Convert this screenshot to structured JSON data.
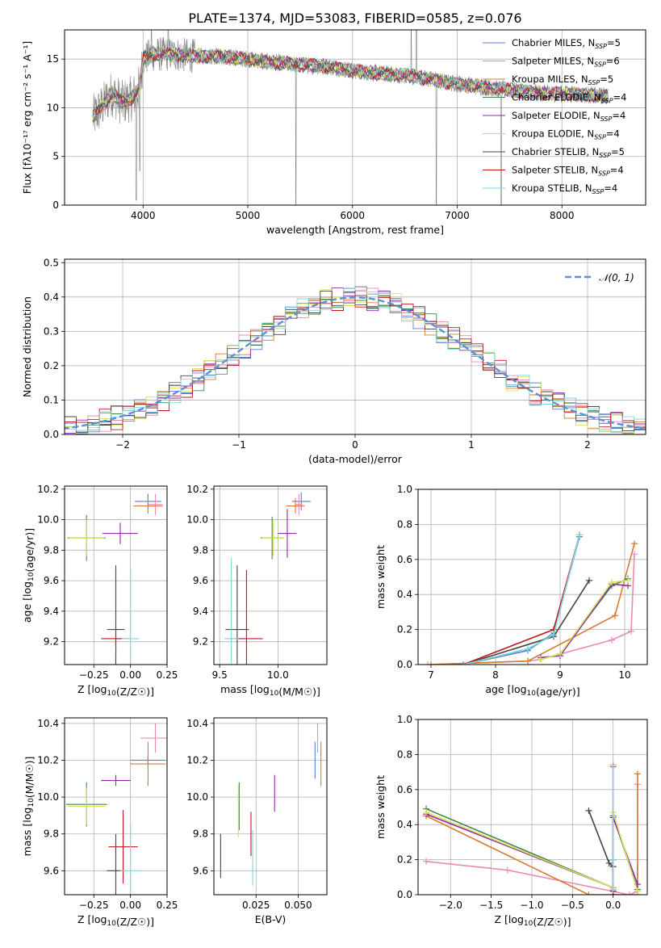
{
  "figure": {
    "title": "PLATE=1374, MJD=53083, FIBERID=0585, z=0.076"
  },
  "series_styles": [
    {
      "name": "Chabrier MILES, N<sub>SSP</sub>=5",
      "name_text": "Chabrier MILES, NSSP=5",
      "color": "#5b7fd0"
    },
    {
      "name": "Salpeter MILES, NSSP=6",
      "color": "#e88ab8"
    },
    {
      "name": "Kroupa MILES, NSSP=5",
      "color": "#d97a2e"
    },
    {
      "name": "Chabrier ELODIE, NSSP=4",
      "color": "#3f8a4a"
    },
    {
      "name": "Salpeter ELODIE, NSSP=4",
      "color": "#8e2aa8"
    },
    {
      "name": "Kroupa ELODIE, NSSP=4",
      "color": "#d9e05a"
    },
    {
      "name": "Chabrier STELIB, NSSP=5",
      "color": "#444444"
    },
    {
      "name": "Salpeter STELIB, NSSP=4",
      "color": "#c01818"
    },
    {
      "name": "Kroupa STELIB, NSSP=4",
      "color": "#7fd6dc"
    }
  ],
  "chart_data": [
    {
      "id": "spectrum",
      "type": "line",
      "xlabel": "wavelength [Angstrom, rest frame]",
      "ylabel": "Flux [fλ10⁻¹⁷ erg cm⁻² s⁻¹ A⁻¹]",
      "xlim": [
        3250,
        8800
      ],
      "ylim": [
        0,
        18
      ],
      "xticks": [
        4000,
        5000,
        6000,
        7000,
        8000
      ],
      "yticks": [
        0,
        5,
        10,
        15
      ],
      "data_color": "#808080",
      "data_x_range": [
        3520,
        8440
      ],
      "data_profile": [
        [
          3520,
          9
        ],
        [
          3600,
          10
        ],
        [
          3700,
          11.5
        ],
        [
          3800,
          10.5
        ],
        [
          3900,
          11
        ],
        [
          3960,
          12
        ],
        [
          4000,
          15
        ],
        [
          4100,
          15.5
        ],
        [
          4300,
          15.5
        ],
        [
          4500,
          15.3
        ],
        [
          4700,
          15.3
        ],
        [
          5000,
          15
        ],
        [
          5200,
          14.7
        ],
        [
          5500,
          14.4
        ],
        [
          5800,
          14.2
        ],
        [
          6000,
          13.8
        ],
        [
          6300,
          13.5
        ],
        [
          6600,
          13.2
        ],
        [
          6900,
          12.6
        ],
        [
          7200,
          12.2
        ],
        [
          7500,
          11.8
        ],
        [
          7800,
          11.5
        ],
        [
          8100,
          11.4
        ],
        [
          8440,
          11.2
        ]
      ],
      "dips": [
        [
          3934,
          0.5
        ],
        [
          3968,
          3.5
        ],
        [
          5460,
          0
        ],
        [
          6800,
          0
        ],
        [
          7420,
          0
        ]
      ],
      "spikes": [
        [
          4080,
          18
        ],
        [
          4240,
          18
        ],
        [
          6560,
          18
        ],
        [
          6610,
          18
        ]
      ],
      "legend_entries": [
        {
          "label": "Chabrier MILES, N",
          "sub": "SSP",
          "suffix": "=5"
        },
        {
          "label": "Salpeter MILES, N",
          "sub": "SSP",
          "suffix": "=6"
        },
        {
          "label": "Kroupa MILES, N",
          "sub": "SSP",
          "suffix": "=5"
        },
        {
          "label": "Chabrier ELODIE, N",
          "sub": "SSP",
          "suffix": "=4"
        },
        {
          "label": "Salpeter ELODIE, N",
          "sub": "SSP",
          "suffix": "=4"
        },
        {
          "label": "Kroupa ELODIE, N",
          "sub": "SSP",
          "suffix": "=4"
        },
        {
          "label": "Chabrier STELIB, N",
          "sub": "SSP",
          "suffix": "=5"
        },
        {
          "label": "Salpeter STELIB, N",
          "sub": "SSP",
          "suffix": "=4"
        },
        {
          "label": "Kroupa STELIB, N",
          "sub": "SSP",
          "suffix": "=4"
        }
      ],
      "legend_placement": "upper right"
    },
    {
      "id": "residuals",
      "type": "histogram",
      "xlabel": "(data-model)/error",
      "ylabel": "Normed distribution",
      "xlim": [
        -2.5,
        2.5
      ],
      "ylim": [
        0,
        0.51
      ],
      "xticks": [
        -2,
        -1,
        0,
        1,
        2
      ],
      "yticks": [
        0.0,
        0.1,
        0.2,
        0.3,
        0.4,
        0.5
      ],
      "bin_width": 0.1,
      "reference_label": "𝒩(0, 1)",
      "reference_color": "#5b8fd6",
      "legend_placement": "upper right",
      "grid": true
    },
    {
      "id": "age_vs_Z",
      "type": "errorbar",
      "xlabel": "Z [log10(Z/Z☉)]",
      "ylabel": "age  [log10(age/yr)]",
      "xlim": [
        -0.45,
        0.25
      ],
      "ylim": [
        9.05,
        10.22
      ],
      "xticks": [
        -0.25,
        0.0,
        0.25
      ],
      "yticks": [
        9.2,
        9.4,
        9.6,
        9.8,
        10.0,
        10.2
      ],
      "points": [
        {
          "x": 0.12,
          "y": 10.12,
          "xerr": 0.09,
          "yerr": 0.05
        },
        {
          "x": 0.17,
          "y": 10.1,
          "xerr": 0.05,
          "yerr": 0.07
        },
        {
          "x": 0.12,
          "y": 10.09,
          "xerr": 0.1,
          "yerr": 0.05
        },
        {
          "x": -0.3,
          "y": 9.88,
          "xerr": 0.13,
          "yerr": 0.15
        },
        {
          "x": -0.07,
          "y": 9.91,
          "xerr": 0.12,
          "yerr": 0.07
        },
        {
          "x": -0.3,
          "y": 9.88,
          "xerr": 0.12,
          "yerr": 0.12
        },
        {
          "x": -0.1,
          "y": 9.28,
          "xerr": 0.06,
          "yerr": 0.42
        },
        {
          "x": -0.1,
          "y": 9.22,
          "xerr": 0.1,
          "yerr": 0.1
        },
        {
          "x": 0.0,
          "y": 9.22,
          "xerr": 0.06,
          "yerr": 0.45
        }
      ]
    },
    {
      "id": "age_vs_mass",
      "type": "errorbar",
      "xlabel": "mass [log10(M/M☉)]",
      "ylabel": "",
      "xlim": [
        9.45,
        10.42
      ],
      "ylim": [
        9.05,
        10.22
      ],
      "xticks": [
        9.5,
        10.0
      ],
      "yticks": [
        9.2,
        9.4,
        9.6,
        9.8,
        10.0,
        10.2
      ],
      "points": [
        {
          "x": 10.2,
          "y": 10.12,
          "xerr": 0.08,
          "yerr": 0.06
        },
        {
          "x": 10.18,
          "y": 10.1,
          "xerr": 0.03,
          "yerr": 0.07
        },
        {
          "x": 10.15,
          "y": 10.09,
          "xerr": 0.08,
          "yerr": 0.05
        },
        {
          "x": 9.95,
          "y": 9.88,
          "xerr": 0.1,
          "yerr": 0.14
        },
        {
          "x": 10.08,
          "y": 9.91,
          "xerr": 0.08,
          "yerr": 0.16
        },
        {
          "x": 9.96,
          "y": 9.88,
          "xerr": 0.1,
          "yerr": 0.12
        },
        {
          "x": 9.65,
          "y": 9.28,
          "xerr": 0.1,
          "yerr": 0.42
        },
        {
          "x": 9.73,
          "y": 9.22,
          "xerr": 0.14,
          "yerr": 0.45
        },
        {
          "x": 9.6,
          "y": 9.22,
          "xerr": 0.06,
          "yerr": 0.53
        }
      ]
    },
    {
      "id": "massweight_vs_age",
      "type": "line",
      "xlabel": "age  [log10(age/yr)]",
      "ylabel": "mass weight",
      "xlim": [
        6.8,
        10.35
      ],
      "ylim": [
        0,
        1.0
      ],
      "xticks": [
        7,
        8,
        9,
        10
      ],
      "yticks": [
        0.0,
        0.2,
        0.4,
        0.6,
        0.8,
        1.0
      ],
      "series": [
        {
          "x": [
            7.5,
            8.5,
            8.9,
            9.3
          ],
          "y": [
            0.0,
            0.08,
            0.18,
            0.73
          ]
        },
        {
          "x": [
            6.95,
            8.5,
            8.7,
            9.8,
            10.1,
            10.15
          ],
          "y": [
            0.0,
            0.02,
            0.03,
            0.14,
            0.19,
            0.63
          ]
        },
        {
          "x": [
            7.0,
            8.5,
            9.85,
            10.15
          ],
          "y": [
            0.0,
            0.02,
            0.28,
            0.69
          ]
        },
        {
          "x": [
            8.7,
            9.0,
            9.8,
            10.05
          ],
          "y": [
            0.03,
            0.06,
            0.45,
            0.49
          ]
        },
        {
          "x": [
            8.7,
            9.0,
            9.8,
            10.05
          ],
          "y": [
            0.04,
            0.05,
            0.46,
            0.45
          ]
        },
        {
          "x": [
            8.7,
            9.0,
            9.8,
            10.05
          ],
          "y": [
            0.03,
            0.06,
            0.47,
            0.48
          ]
        },
        {
          "x": [
            7.5,
            8.9,
            9.45
          ],
          "y": [
            0.0,
            0.16,
            0.48
          ]
        },
        {
          "x": [
            7.5,
            8.9,
            9.3
          ],
          "y": [
            0.0,
            0.2,
            0.74
          ]
        },
        {
          "x": [
            7.5,
            8.5,
            8.9,
            9.3
          ],
          "y": [
            0.0,
            0.09,
            0.17,
            0.74
          ]
        }
      ]
    },
    {
      "id": "mass_vs_Z",
      "type": "errorbar",
      "xlabel": "Z [log10(Z/Z☉)]",
      "ylabel": "mass [log10(M/M☉)]",
      "xlim": [
        -0.45,
        0.25
      ],
      "ylim": [
        9.47,
        10.43
      ],
      "xticks": [
        -0.25,
        0.0,
        0.25
      ],
      "yticks": [
        9.6,
        9.8,
        10.0,
        10.2,
        10.4
      ],
      "points": [
        {
          "x": 0.12,
          "y": 10.2,
          "xerr": 0.12,
          "yerr": 0.02
        },
        {
          "x": 0.17,
          "y": 10.32,
          "xerr": 0.1,
          "yerr": 0.08
        },
        {
          "x": 0.12,
          "y": 10.18,
          "xerr": 0.12,
          "yerr": 0.12
        },
        {
          "x": -0.3,
          "y": 9.96,
          "xerr": 0.14,
          "yerr": 0.12
        },
        {
          "x": -0.1,
          "y": 10.09,
          "xerr": 0.1,
          "yerr": 0.03
        },
        {
          "x": -0.3,
          "y": 9.95,
          "xerr": 0.13,
          "yerr": 0.1
        },
        {
          "x": -0.1,
          "y": 9.6,
          "xerr": 0.06,
          "yerr": 0.2
        },
        {
          "x": -0.05,
          "y": 9.73,
          "xerr": 0.1,
          "yerr": 0.2
        },
        {
          "x": 0.0,
          "y": 9.6,
          "xerr": 0.07,
          "yerr": 0.25
        }
      ]
    },
    {
      "id": "mass_vs_EBV",
      "type": "errorbar",
      "xlabel": "E(B-V)",
      "ylabel": "",
      "xlim": [
        0.0,
        0.067
      ],
      "ylim": [
        9.47,
        10.43
      ],
      "xticks": [
        0.025,
        0.05
      ],
      "yticks": [
        9.6,
        9.8,
        10.0,
        10.2,
        10.4
      ],
      "points": [
        {
          "x": 0.06,
          "y": 10.2,
          "xerr": 0,
          "yerr": 0.1
        },
        {
          "x": 0.0615,
          "y": 10.32,
          "xerr": 0,
          "yerr": 0.08
        },
        {
          "x": 0.0635,
          "y": 10.18,
          "xerr": 0,
          "yerr": 0.12
        },
        {
          "x": 0.015,
          "y": 9.95,
          "xerr": 0,
          "yerr": 0.13
        },
        {
          "x": 0.036,
          "y": 10.02,
          "xerr": 0,
          "yerr": 0.1
        },
        {
          "x": 0.0145,
          "y": 9.92,
          "xerr": 0,
          "yerr": 0.14
        },
        {
          "x": 0.004,
          "y": 9.68,
          "xerr": 0,
          "yerr": 0.12
        },
        {
          "x": 0.022,
          "y": 9.8,
          "xerr": 0,
          "yerr": 0.12
        },
        {
          "x": 0.023,
          "y": 9.67,
          "xerr": 0,
          "yerr": 0.15
        }
      ]
    },
    {
      "id": "massweight_vs_Z",
      "type": "line",
      "xlabel": "Z [log10(Z/Z☉)]",
      "ylabel": "mass weight",
      "xlim": [
        -2.4,
        0.42
      ],
      "ylim": [
        0,
        1.0
      ],
      "xticks": [
        -2.0,
        -1.5,
        -1.0,
        -0.5,
        0.0
      ],
      "yticks": [
        0.0,
        0.2,
        0.4,
        0.6,
        0.8,
        1.0
      ],
      "series": [
        {
          "x": [
            0.0,
            0.0,
            0.0
          ],
          "y": [
            0.03,
            0.2,
            0.73
          ]
        },
        {
          "x": [
            -2.3,
            -1.3,
            0.2,
            0.3,
            0.3
          ],
          "y": [
            0.19,
            0.14,
            0.0,
            0.02,
            0.63
          ]
        },
        {
          "x": [
            -2.3,
            -0.3,
            0.3,
            0.3
          ],
          "y": [
            0.45,
            0.0,
            0.0,
            0.69
          ]
        },
        {
          "x": [
            -2.3,
            0.0,
            0.0,
            0.3
          ],
          "y": [
            0.49,
            0.04,
            0.45,
            0.03
          ]
        },
        {
          "x": [
            -2.3,
            0.0,
            0.0,
            0.3
          ],
          "y": [
            0.46,
            0.04,
            0.44,
            0.06
          ]
        },
        {
          "x": [
            -2.3,
            0.0,
            0.0,
            0.3
          ],
          "y": [
            0.47,
            0.04,
            0.47,
            0.02
          ]
        },
        {
          "x": [
            -0.3,
            -0.05,
            0.0,
            0.0
          ],
          "y": [
            0.48,
            0.18,
            0.16,
            0.0
          ]
        },
        {
          "x": [
            0.0,
            0.0,
            0.0
          ],
          "y": [
            0.02,
            0.2,
            0.74
          ]
        },
        {
          "x": [
            0.0,
            0.0,
            0.0
          ],
          "y": [
            0.03,
            0.2,
            0.74
          ]
        }
      ]
    }
  ]
}
